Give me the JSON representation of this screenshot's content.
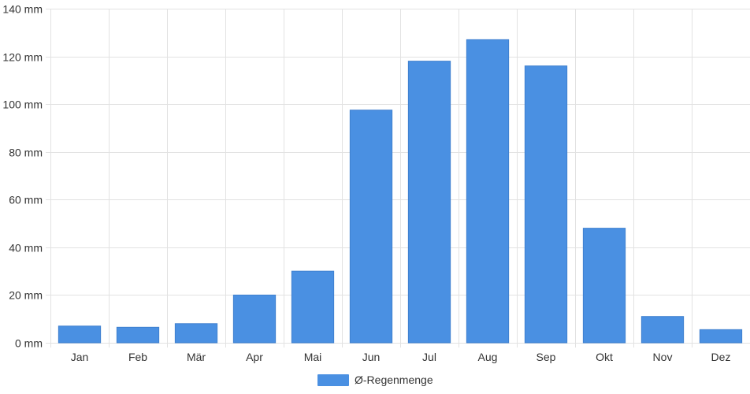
{
  "chart_data": {
    "type": "bar",
    "categories": [
      "Jan",
      "Feb",
      "Mär",
      "Apr",
      "Mai",
      "Jun",
      "Jul",
      "Aug",
      "Sep",
      "Okt",
      "Nov",
      "Dez"
    ],
    "series": [
      {
        "name": "Ø-Regenmenge",
        "color": "#4a90e2",
        "values": [
          7,
          6.5,
          8,
          20,
          30,
          97.5,
          118,
          127,
          116,
          48,
          11,
          5.5
        ]
      }
    ],
    "ylim": [
      0,
      140
    ],
    "y_ticks": [
      0,
      20,
      40,
      60,
      80,
      100,
      120,
      140
    ],
    "y_tick_labels": [
      "0 mm",
      "20 mm",
      "40 mm",
      "60 mm",
      "80 mm",
      "100 mm",
      "120 mm",
      "140 mm"
    ],
    "grid": true,
    "legend_position": "bottom-center",
    "title": "",
    "xlabel": "",
    "ylabel": ""
  }
}
